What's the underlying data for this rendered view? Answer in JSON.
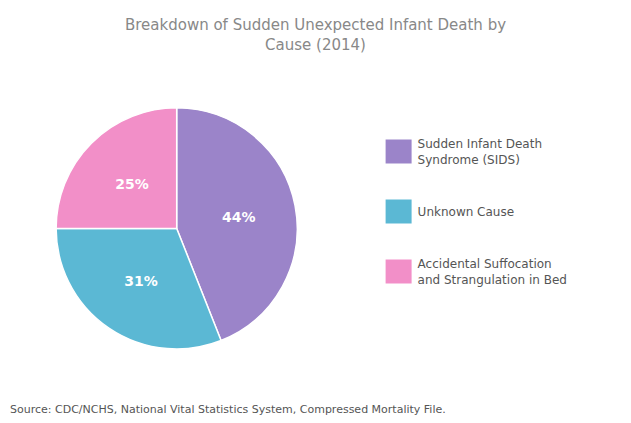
{
  "chart_data": {
    "type": "pie",
    "title": "Breakdown of Sudden Unexpected Infant Death by\nCause (2014)",
    "categories": [
      "Sudden Infant Death\nSyndrome (SIDS)",
      "Unknown Cause",
      "Accidental Suffocation\nand Strangulation in Bed"
    ],
    "values": [
      44,
      31,
      25
    ],
    "value_labels": [
      "44%",
      "31%",
      "25%"
    ],
    "colors": [
      "#9b84c9",
      "#5bb8d4",
      "#f28fc8"
    ],
    "data_labels": true,
    "legend": "right",
    "annotations": [
      "Source: CDC/NCHS, National Vital Statistics System, Compressed Mortality File."
    ]
  }
}
